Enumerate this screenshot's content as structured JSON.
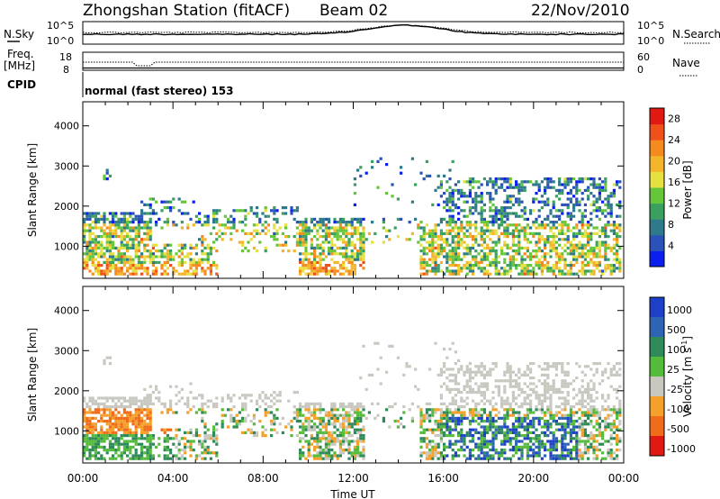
{
  "header": {
    "station": "Zhongshan Station (fitACF)",
    "beam": "Beam 02",
    "date": "22/Nov/2010"
  },
  "panels": {
    "nsky_label": "N.Sky",
    "nsearch_label": "N.Search",
    "nsky_ticks": [
      "10^5",
      "10^0"
    ],
    "nsearch_ticks": [
      "10^5",
      "10^0"
    ],
    "freq_label_1": "Freq.",
    "freq_label_2": "[MHz]",
    "freq_ticks": [
      "18",
      "8"
    ],
    "nave_label": "Nave",
    "nave_ticks": [
      "60",
      "0"
    ],
    "cpid_label": "CPID",
    "cpid_value": "normal (fast stereo) 153"
  },
  "chart_data": [
    {
      "type": "heatmap",
      "name": "power",
      "ylabel": "Slant Range [km]",
      "yticks": [
        1000,
        2000,
        3000,
        4000
      ],
      "ylim": [
        200,
        4600
      ],
      "xlim": [
        0,
        24
      ],
      "colorbar": {
        "label": "Power [dB]",
        "ticks": [
          "4",
          "8",
          "12",
          "16",
          "20",
          "24",
          "28"
        ],
        "colors": [
          "#0a1ef0",
          "#2a52b8",
          "#2f7a8a",
          "#3aa060",
          "#66c63a",
          "#e6e040",
          "#f5b52a",
          "#f58a1e",
          "#f0501a",
          "#e01a12"
        ]
      }
    },
    {
      "type": "heatmap",
      "name": "velocity",
      "ylabel": "Slant Range [km]",
      "yticks": [
        1000,
        2000,
        3000,
        4000
      ],
      "ylim": [
        200,
        4600
      ],
      "xlim": [
        0,
        24
      ],
      "xlabel": "Time UT",
      "xticks": [
        "00:00",
        "04:00",
        "08:00",
        "12:00",
        "16:00",
        "20:00",
        "00:00"
      ],
      "colorbar": {
        "label_main": "Velocity [m s",
        "label_sup": "-1",
        "label_end": "]",
        "ticks": [
          "1000",
          "500",
          "100",
          "25",
          "-25",
          "-100",
          "-500",
          "-1000"
        ],
        "colors": [
          "#1e40c8",
          "#2e64b4",
          "#2f8a5a",
          "#55bb3a",
          "#c8c8c0",
          "#f5a02a",
          "#f06c1a",
          "#e01a12"
        ]
      }
    }
  ]
}
